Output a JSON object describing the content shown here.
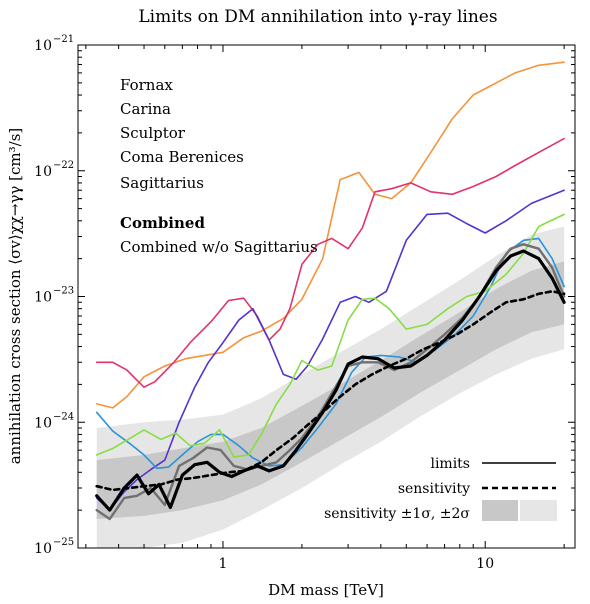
{
  "chart_data": {
    "type": "line",
    "title": "Limits on DM annihilation into γ-ray lines",
    "xlabel": "DM mass [TeV]",
    "ylabel": "annihilation cross section ⟨σv⟩χχ→γγ [cm³/s]",
    "xscale": "log",
    "yscale": "log",
    "xlim": [
      0.28,
      22
    ],
    "ylim": [
      1e-25,
      1e-21
    ],
    "x_ticks": [
      {
        "v": 1,
        "label": "1"
      },
      {
        "v": 10,
        "label": "10"
      }
    ],
    "y_ticks": [
      {
        "v": 1e-25,
        "label": "10",
        "exp": "−25"
      },
      {
        "v": 1e-24,
        "label": "10",
        "exp": "−24"
      },
      {
        "v": 1e-23,
        "label": "10",
        "exp": "−23"
      },
      {
        "v": 1e-22,
        "label": "10",
        "exp": "−22"
      },
      {
        "v": 1e-21,
        "label": "10",
        "exp": "−21"
      }
    ],
    "legend_position": "top-left",
    "series": [
      {
        "name": "Fornax",
        "color": "#f7923a",
        "width": 1.6,
        "dash": "",
        "x": [
          0.33,
          0.38,
          0.43,
          0.5,
          0.6,
          0.72,
          0.85,
          1.0,
          1.2,
          1.4,
          1.7,
          2.0,
          2.4,
          2.8,
          3.3,
          3.8,
          4.4,
          5.2,
          6.2,
          7.5,
          9,
          11,
          13,
          16,
          20
        ],
        "y": [
          1.4e-24,
          1.3e-24,
          1.6e-24,
          2.3e-24,
          2.8e-24,
          3.2e-24,
          3.4e-24,
          3.6e-24,
          4.7e-24,
          5.3e-24,
          6.7e-24,
          9.5e-24,
          2e-23,
          8.5e-23,
          9.7e-23,
          6.5e-23,
          6e-23,
          8e-23,
          1.4e-22,
          2.6e-22,
          4e-22,
          5e-22,
          6e-22,
          6.9e-22,
          7.3e-22
        ]
      },
      {
        "name": "Carina",
        "color": "#e0336e",
        "width": 1.6,
        "dash": "",
        "x": [
          0.33,
          0.38,
          0.43,
          0.5,
          0.55,
          0.65,
          0.75,
          0.9,
          1.05,
          1.2,
          1.35,
          1.5,
          1.65,
          1.8,
          2.0,
          2.3,
          2.6,
          3.0,
          3.4,
          3.8,
          4.4,
          5.2,
          6.2,
          7.5,
          9,
          11,
          13,
          16,
          20
        ],
        "y": [
          3e-24,
          3e-24,
          2.6e-24,
          1.9e-24,
          2.1e-24,
          3e-24,
          4.3e-24,
          6.3e-24,
          9.3e-24,
          9.7e-24,
          7e-24,
          4.5e-24,
          5.5e-24,
          8e-24,
          1.8e-23,
          2.6e-23,
          2.9e-23,
          2.4e-23,
          3.5e-23,
          6.8e-23,
          7.2e-23,
          8e-23,
          6.8e-23,
          6.5e-23,
          7.5e-23,
          9e-23,
          1.1e-22,
          1.4e-22,
          1.8e-22
        ]
      },
      {
        "name": "Sculptor",
        "color": "#5533cc",
        "width": 1.6,
        "dash": "",
        "x": [
          0.33,
          0.37,
          0.42,
          0.47,
          0.53,
          0.6,
          0.68,
          0.78,
          0.88,
          1.0,
          1.15,
          1.3,
          1.5,
          1.7,
          1.9,
          2.1,
          2.4,
          2.8,
          3.2,
          3.6,
          4.2,
          5.0,
          6.0,
          7.2,
          8.5,
          10,
          12,
          15,
          20
        ],
        "y": [
          2.5e-25,
          2e-25,
          2.8e-25,
          3.5e-25,
          4.2e-25,
          5e-25,
          1e-24,
          1.9e-24,
          3e-24,
          4.3e-24,
          6.5e-24,
          8e-24,
          4.5e-24,
          2.4e-24,
          2.2e-24,
          2.8e-24,
          4.6e-24,
          9e-24,
          1e-23,
          9e-24,
          1.1e-23,
          2.8e-23,
          4.5e-23,
          4.6e-23,
          3.8e-23,
          3.2e-23,
          4e-23,
          5.5e-23,
          7e-23
        ]
      },
      {
        "name": "Coma Berenices",
        "color": "#2b93d8",
        "width": 1.6,
        "dash": "",
        "x": [
          0.33,
          0.38,
          0.44,
          0.5,
          0.56,
          0.62,
          0.7,
          0.8,
          0.9,
          1.0,
          1.15,
          1.3,
          1.5,
          1.7,
          2.0,
          2.3,
          2.7,
          3.1,
          3.5,
          4.0,
          4.7,
          5.5,
          6.5,
          7.7,
          9,
          10.5,
          12,
          14,
          16,
          18,
          20
        ],
        "y": [
          1.2e-24,
          8.5e-25,
          6.8e-25,
          5.5e-25,
          4.3e-25,
          4.4e-25,
          5.5e-25,
          7e-25,
          8e-25,
          8e-25,
          6.5e-25,
          5.2e-25,
          4.5e-25,
          4.6e-25,
          6.3e-25,
          9e-25,
          1.4e-24,
          2.5e-24,
          3.3e-24,
          3.4e-24,
          3.3e-24,
          3e-24,
          3.8e-24,
          5e-24,
          7e-24,
          1.2e-23,
          2.2e-23,
          2.8e-23,
          2.9e-23,
          2e-23,
          1.2e-23
        ]
      },
      {
        "name": "Sagittarius",
        "color": "#88dd44",
        "width": 1.6,
        "dash": "",
        "x": [
          0.33,
          0.38,
          0.43,
          0.5,
          0.58,
          0.66,
          0.75,
          0.85,
          0.97,
          1.1,
          1.25,
          1.4,
          1.6,
          1.8,
          2.0,
          2.3,
          2.6,
          3.0,
          3.4,
          3.8,
          4.3,
          5.0,
          6.0,
          7.2,
          8.5,
          10,
          12,
          14,
          16,
          20
        ],
        "y": [
          5.5e-25,
          6.2e-25,
          7.2e-25,
          8.7e-25,
          7.3e-25,
          8.2e-25,
          6.5e-25,
          6.8e-25,
          8.7e-25,
          5.3e-25,
          5.5e-25,
          8e-25,
          1.4e-24,
          2e-24,
          3.1e-24,
          2.6e-24,
          2.8e-24,
          6.5e-24,
          9.5e-24,
          9.7e-24,
          8e-24,
          5.5e-24,
          6e-24,
          8e-24,
          1e-23,
          1.1e-23,
          1.5e-23,
          2.2e-23,
          3.6e-23,
          4.5e-23
        ]
      },
      {
        "name": "Combined w/o Sagittarius",
        "color": "#707070",
        "width": 2.4,
        "dash": "",
        "x": [
          0.33,
          0.37,
          0.42,
          0.47,
          0.53,
          0.6,
          0.68,
          0.77,
          0.87,
          0.98,
          1.1,
          1.25,
          1.4,
          1.6,
          1.8,
          2.0,
          2.3,
          2.6,
          3.0,
          3.4,
          3.9,
          4.5,
          5.2,
          6.0,
          7.0,
          8.2,
          9.5,
          11,
          12.5,
          14,
          16,
          18,
          20
        ],
        "y": [
          2e-25,
          1.7e-25,
          2.5e-25,
          2.6e-25,
          3e-25,
          2.2e-25,
          4.5e-25,
          5.2e-25,
          6.3e-25,
          6e-25,
          4.5e-25,
          4.2e-25,
          4.5e-25,
          4.8e-25,
          6e-25,
          7.5e-25,
          1.1e-24,
          1.7e-24,
          2.8e-24,
          3e-24,
          3e-24,
          2.6e-24,
          3e-24,
          3.8e-24,
          5e-24,
          6.8e-24,
          1e-23,
          1.7e-23,
          2.4e-23,
          2.6e-23,
          2.4e-23,
          1.7e-23,
          1e-23
        ]
      },
      {
        "name": "Combined",
        "color": "#000000",
        "width": 3.2,
        "dash": "",
        "x": [
          0.33,
          0.37,
          0.42,
          0.47,
          0.52,
          0.57,
          0.63,
          0.7,
          0.78,
          0.87,
          0.97,
          1.08,
          1.2,
          1.35,
          1.5,
          1.7,
          1.9,
          2.1,
          2.4,
          2.7,
          3.0,
          3.4,
          3.9,
          4.5,
          5.2,
          6.0,
          7.0,
          8.2,
          9.5,
          11,
          12.5,
          14,
          16,
          18,
          20
        ],
        "y": [
          2.6e-25,
          2e-25,
          3e-25,
          3.8e-25,
          2.7e-25,
          3.2e-25,
          2.1e-25,
          3.8e-25,
          4.6e-25,
          4.8e-25,
          4e-25,
          3.7e-25,
          4.1e-25,
          4.5e-25,
          4.1e-25,
          4.5e-25,
          6e-25,
          8e-25,
          1.2e-24,
          1.8e-24,
          2.9e-24,
          3.3e-24,
          3.2e-24,
          2.7e-24,
          2.8e-24,
          3.4e-24,
          4.5e-24,
          6.5e-24,
          1e-23,
          1.6e-23,
          2.1e-23,
          2.3e-23,
          2e-23,
          1.4e-23,
          9e-24
        ]
      },
      {
        "name": "sensitivity",
        "color": "#000000",
        "width": 2.6,
        "dash": "5,4",
        "x": [
          0.33,
          0.38,
          0.44,
          0.5,
          0.58,
          0.67,
          0.77,
          0.9,
          1.05,
          1.2,
          1.4,
          1.6,
          1.85,
          2.1,
          2.4,
          2.8,
          3.2,
          3.7,
          4.3,
          5.0,
          5.8,
          6.7,
          7.8,
          9.0,
          10.5,
          12,
          14,
          16,
          18,
          20
        ],
        "y": [
          3.1e-25,
          2.9e-25,
          3e-25,
          3.1e-25,
          3.2e-25,
          3.5e-25,
          3.6e-25,
          3.8e-25,
          4e-25,
          4.1e-25,
          4.8e-25,
          6e-25,
          7.5e-25,
          9.5e-25,
          1.2e-24,
          1.6e-24,
          2e-24,
          2.4e-24,
          2.8e-24,
          3.2e-24,
          3.8e-24,
          4.3e-24,
          5e-24,
          6e-24,
          7.5e-24,
          9e-24,
          9.5e-24,
          1.05e-23,
          1.1e-23,
          1.05e-23
        ]
      }
    ],
    "bands": [
      {
        "name": "sensitivity ±2σ",
        "color": "#e6e6e6",
        "x": [
          0.33,
          0.5,
          0.7,
          1.0,
          1.4,
          2.0,
          2.8,
          4.0,
          5.6,
          8.0,
          11,
          15,
          20
        ],
        "lo": [
          1e-25,
          1e-25,
          1.1e-25,
          1.4e-25,
          2e-25,
          3e-25,
          4.6e-25,
          7e-25,
          1.1e-24,
          1.7e-24,
          2.4e-24,
          3.2e-24,
          3.8e-24
        ],
        "hi": [
          9e-25,
          1e-24,
          1.05e-24,
          1.15e-24,
          1.55e-24,
          2.4e-24,
          3.6e-24,
          5.5e-24,
          8.5e-24,
          1.35e-23,
          2.1e-23,
          3.1e-23,
          3.6e-23
        ]
      },
      {
        "name": "sensitivity ±1σ",
        "color": "#c8c8c8",
        "x": [
          0.33,
          0.5,
          0.7,
          1.0,
          1.4,
          2.0,
          2.8,
          4.0,
          5.6,
          8.0,
          11,
          15,
          20
        ],
        "lo": [
          1.7e-25,
          1.8e-25,
          2e-25,
          2.4e-25,
          3.2e-25,
          4.8e-25,
          7.2e-25,
          1.1e-24,
          1.7e-24,
          2.6e-24,
          3.8e-24,
          5.2e-24,
          6e-24
        ],
        "hi": [
          5e-25,
          5.5e-25,
          6.2e-25,
          7e-25,
          9e-25,
          1.35e-24,
          2e-24,
          3.1e-24,
          4.8e-24,
          7.5e-24,
          1.15e-23,
          1.6e-23,
          1.9e-23
        ]
      }
    ],
    "legend_top": [
      {
        "label": "Fornax",
        "color": "#f7923a",
        "bold": false
      },
      {
        "label": "Carina",
        "color": "#e0336e",
        "bold": false
      },
      {
        "label": "Sculptor",
        "color": "#5533cc",
        "bold": false
      },
      {
        "label": "Coma Berenices",
        "color": "#2b93d8",
        "bold": false
      },
      {
        "label": "Sagittarius",
        "color": "#88dd44",
        "bold": false
      },
      {
        "label": "Combined",
        "color": "#000000",
        "bold": true
      },
      {
        "label": "Combined w/o Sagittarius",
        "color": "#707070",
        "bold": false
      }
    ],
    "legend_bottom": {
      "limits": "limits",
      "sensitivity": "sensitivity",
      "bands": "sensitivity ±1σ, ±2σ"
    }
  }
}
